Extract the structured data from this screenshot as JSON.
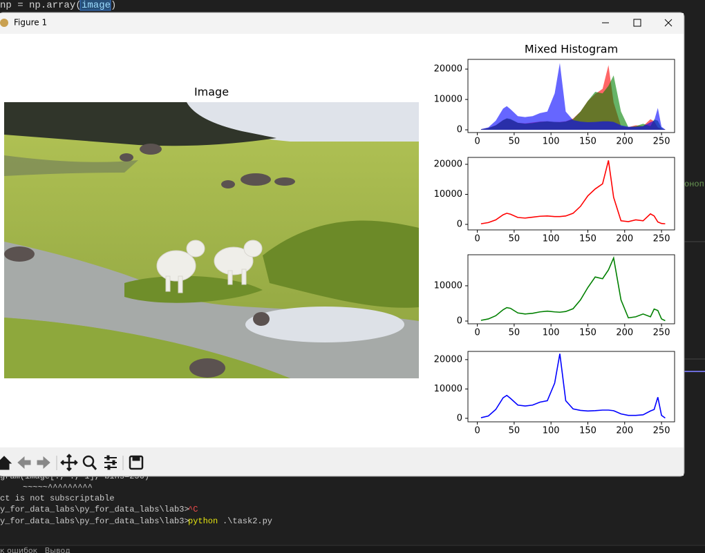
{
  "editor": {
    "code_prefix": "np = np.array(",
    "code_highlight": "image",
    "code_suffix": ")",
    "side_text": "оноп"
  },
  "window": {
    "title": "Figure 1"
  },
  "figure": {
    "image_title": "Image"
  },
  "chart_data": [
    {
      "type": "area",
      "title": "Mixed Histogram",
      "alpha": 0.6,
      "x": [
        5,
        15,
        25,
        35,
        40,
        45,
        55,
        65,
        75,
        85,
        95,
        105,
        112,
        120,
        130,
        140,
        150,
        160,
        170,
        178,
        185,
        195,
        205,
        215,
        225,
        235,
        240,
        245,
        250,
        255
      ],
      "series": [
        {
          "color": "#ff0000",
          "values": [
            200,
            600,
            1500,
            3200,
            3700,
            3400,
            2300,
            2100,
            2400,
            2700,
            2800,
            2600,
            2600,
            2800,
            3700,
            6000,
            9500,
            11800,
            13500,
            21300,
            9000,
            1200,
            900,
            1500,
            1200,
            3500,
            2800,
            800,
            300,
            200
          ]
        },
        {
          "color": "#008000",
          "values": [
            200,
            600,
            1500,
            3200,
            3800,
            3600,
            2300,
            2000,
            2200,
            2600,
            2800,
            2600,
            2500,
            2700,
            3500,
            6000,
            9500,
            12500,
            12000,
            14500,
            17900,
            6000,
            900,
            1200,
            2000,
            1200,
            3400,
            3000,
            600,
            100
          ]
        },
        {
          "color": "#0000ff",
          "values": [
            200,
            800,
            3000,
            7000,
            7800,
            6800,
            4500,
            4200,
            4500,
            5500,
            6000,
            12000,
            22000,
            6000,
            3200,
            2700,
            2500,
            2600,
            2800,
            2800,
            2600,
            1500,
            1000,
            1000,
            1200,
            2500,
            3000,
            7200,
            1000,
            100
          ]
        }
      ],
      "xlim": [
        -12.75,
        267.75
      ],
      "xticks": [
        0,
        50,
        100,
        150,
        200,
        250
      ],
      "ylim": [
        -900,
        23200
      ],
      "yticks": [
        0,
        10000,
        20000
      ]
    },
    {
      "type": "line",
      "color": "#ff0000",
      "x": [
        5,
        15,
        25,
        35,
        40,
        45,
        55,
        65,
        75,
        85,
        95,
        105,
        112,
        120,
        130,
        140,
        150,
        160,
        170,
        178,
        185,
        195,
        205,
        215,
        225,
        235,
        240,
        245,
        250,
        255
      ],
      "values": [
        200,
        600,
        1500,
        3200,
        3700,
        3400,
        2300,
        2100,
        2400,
        2700,
        2800,
        2600,
        2600,
        2800,
        3700,
        6000,
        9500,
        11800,
        13500,
        21300,
        9000,
        1200,
        900,
        1500,
        1200,
        3500,
        2800,
        800,
        300,
        200
      ],
      "xlim": [
        -12.75,
        267.75
      ],
      "xticks": [
        0,
        50,
        100,
        150,
        200,
        250
      ],
      "ylim": [
        -1840,
        22300
      ],
      "yticks": [
        0,
        10000,
        20000
      ]
    },
    {
      "type": "line",
      "color": "#008000",
      "x": [
        5,
        15,
        25,
        35,
        40,
        45,
        55,
        65,
        75,
        85,
        95,
        105,
        112,
        120,
        130,
        140,
        150,
        160,
        170,
        178,
        185,
        195,
        205,
        215,
        225,
        235,
        240,
        245,
        250,
        255
      ],
      "values": [
        200,
        600,
        1500,
        3200,
        3800,
        3600,
        2300,
        2000,
        2200,
        2600,
        2800,
        2600,
        2500,
        2700,
        3500,
        6000,
        9500,
        12500,
        12000,
        14500,
        17900,
        6000,
        900,
        1200,
        2000,
        1200,
        3400,
        3000,
        600,
        100
      ],
      "xlim": [
        -12.75,
        267.75
      ],
      "xticks": [
        0,
        50,
        100,
        150,
        200,
        250
      ],
      "ylim": [
        -780,
        18800
      ],
      "yticks": [
        0,
        10000
      ]
    },
    {
      "type": "line",
      "color": "#0000ff",
      "x": [
        5,
        15,
        25,
        35,
        40,
        45,
        55,
        65,
        75,
        85,
        95,
        105,
        112,
        120,
        130,
        140,
        150,
        160,
        170,
        178,
        185,
        195,
        205,
        215,
        225,
        235,
        240,
        245,
        250,
        255
      ],
      "values": [
        200,
        800,
        3000,
        7000,
        7800,
        6800,
        4500,
        4200,
        4500,
        5500,
        6000,
        12000,
        22000,
        6000,
        3200,
        2700,
        2500,
        2600,
        2800,
        2800,
        2600,
        1500,
        1000,
        1000,
        1200,
        2500,
        3000,
        7200,
        1000,
        100
      ],
      "xlim": [
        -12.75,
        267.75
      ],
      "xticks": [
        0,
        50,
        100,
        150,
        200,
        250
      ],
      "ylim": [
        -1200,
        22800
      ],
      "yticks": [
        0,
        10000,
        20000
      ]
    }
  ],
  "terminal": {
    "lines": [
      "gram(image[:, :, 1], bins=256)",
      "~~~~~^^^^^^^^^",
      "ct is not subscriptable"
    ],
    "prompt_1": "y_for_data_labs\\py_for_data_labs\\lab3>",
    "interrupt": "^C",
    "prompt_2": "y_for_data_labs\\py_for_data_labs\\lab3>",
    "command": "python",
    "argument": ".\\task2.py"
  },
  "status_bar": {
    "text": "к ошибок   Вывод"
  }
}
